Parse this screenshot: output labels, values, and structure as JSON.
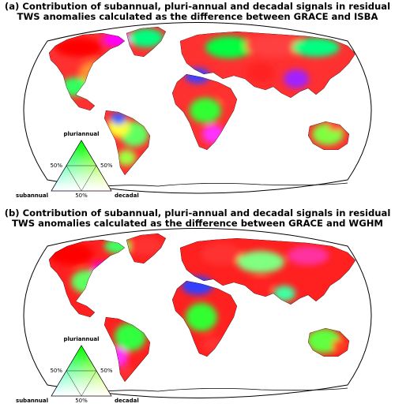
{
  "panels": [
    {
      "title_line1": "(a) Contribution of subannual, pluri-annual and decadal signals in residual",
      "title_line2": "TWS anomalies calculated as the difference between GRACE and ISBA",
      "legend": {
        "top": "pluriannual",
        "left": "subannual",
        "right": "decadal",
        "left_mid": "50%",
        "right_mid": "50%",
        "bottom_mid": "50%"
      }
    },
    {
      "title_line1": "(b) Contribution of subannual, pluri-annual and decadal signals in residual",
      "title_line2": "TWS anomalies calculated as the difference between GRACE and WGHM",
      "legend": {
        "top": "pluriannual",
        "left": "subannual",
        "right": "decadal",
        "left_mid": "50%",
        "right_mid": "50%",
        "bottom_mid": "50%"
      }
    }
  ],
  "colors": {
    "subannual": "#0000ff",
    "pluriannual": "#00ff00",
    "decadal": "#ff0000"
  }
}
